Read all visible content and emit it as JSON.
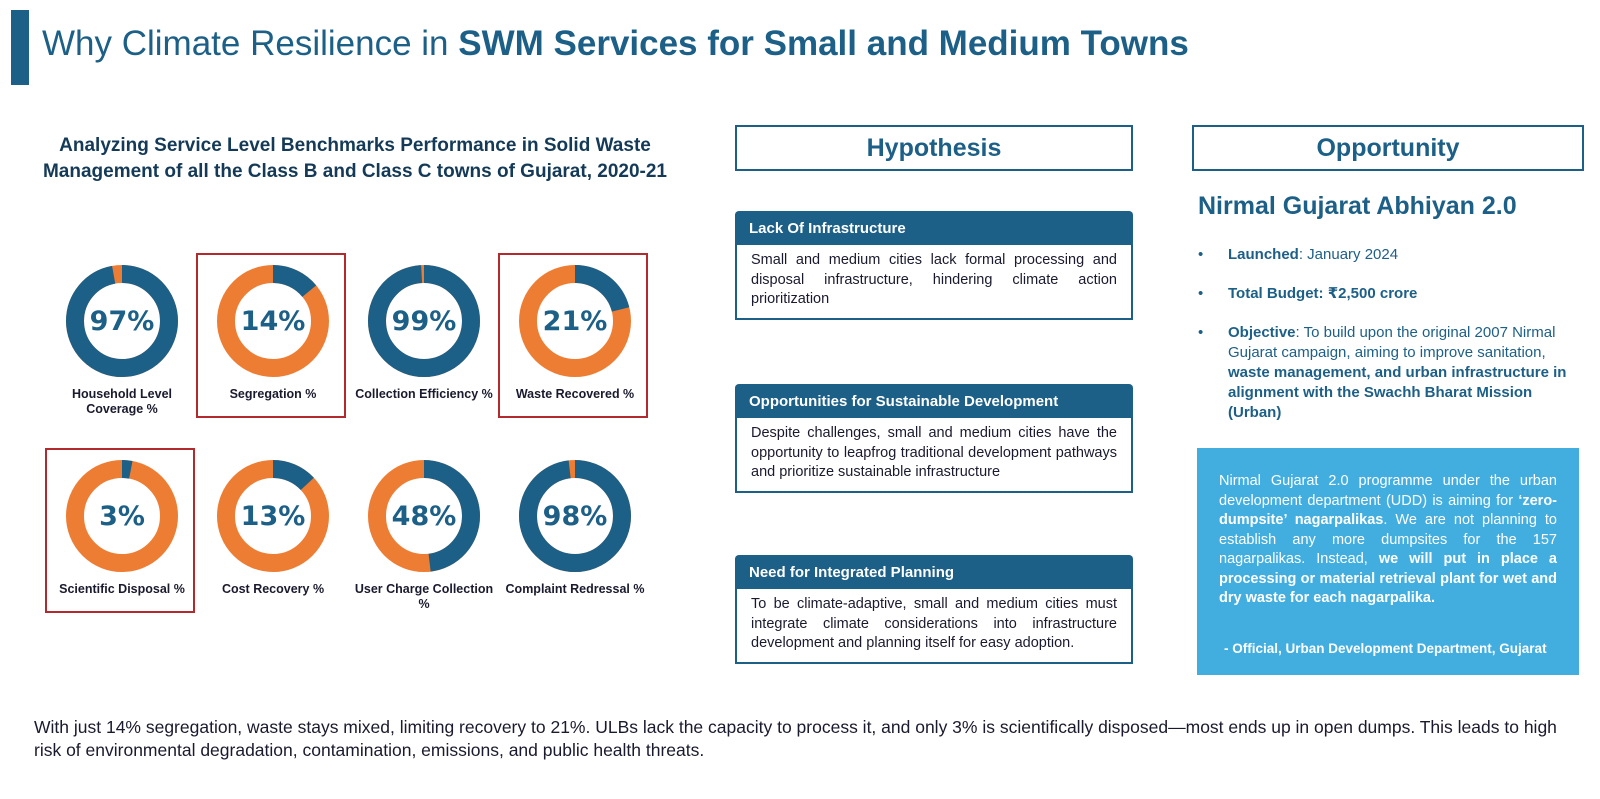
{
  "header": {
    "title_regular": "Why Climate Resilience in ",
    "title_bold": "SWM Services for Small and Medium Towns"
  },
  "chart_heading": "Analyzing Service Level Benchmarks Performance in Solid Waste Management of all the Class B and Class C towns of Gujarat, 2020-21",
  "colors": {
    "primary": "#1c5f87",
    "accent": "#ee7d34",
    "highlight_border": "#b22a2e",
    "quote_bg": "#42aee0"
  },
  "chart_data": {
    "type": "donut",
    "title": "Analyzing Service Level Benchmarks Performance in Solid Waste Management of all the Class B and Class C towns of Gujarat, 2020-21",
    "unit": "%",
    "items": [
      {
        "label": "Household Level Coverage %",
        "value": 97,
        "display": "97%",
        "highlighted": false
      },
      {
        "label": "Segregation %",
        "value": 14,
        "display": "14%",
        "highlighted": true
      },
      {
        "label": "Collection Efficiency %",
        "value": 99,
        "display": "99%",
        "highlighted": false
      },
      {
        "label": "Waste Recovered %",
        "value": 21,
        "display": "21%",
        "highlighted": true
      },
      {
        "label": "Scientific Disposal %",
        "value": 3,
        "display": "3%",
        "highlighted": true
      },
      {
        "label": "Cost Recovery %",
        "value": 13,
        "display": "13%",
        "highlighted": false
      },
      {
        "label": "User Charge Collection %",
        "value": 48,
        "display": "48%",
        "highlighted": false
      },
      {
        "label": "Complaint Redressal %",
        "value": 98,
        "display": "98%",
        "highlighted": false
      }
    ]
  },
  "hypothesis": {
    "heading": "Hypothesis",
    "cards": [
      {
        "title": "Lack Of Infrastructure",
        "body": "Small and medium cities lack formal processing and disposal infrastructure, hindering climate action prioritization"
      },
      {
        "title": "Opportunities for Sustainable Development",
        "body": "Despite challenges, small and medium cities have the opportunity to leapfrog traditional development pathways and prioritize sustainable infrastructure"
      },
      {
        "title": "Need for Integrated Planning",
        "body": "To be climate-adaptive, small and medium cities must integrate climate considerations into infrastructure development and planning itself for easy adoption."
      }
    ]
  },
  "opportunity": {
    "heading": "Opportunity",
    "program_title": "Nirmal Gujarat Abhiyan 2.0",
    "launched_label": "Launched",
    "launched_value": ": January 2024",
    "budget_label": "Total Budget",
    "budget_value": ": ₹2,500 crore",
    "objective_label": "Objective",
    "objective_text": ": To build upon the original 2007 Nirmal Gujarat campaign, aiming to improve sanitation, ",
    "objective_bold": "waste management, and urban infrastructure in alignment with the Swachh Bharat Mission (Urban)",
    "quote_part1": "Nirmal Gujarat 2.0 programme under the urban development department (UDD) is aiming for ",
    "quote_bold1": "‘zero-dumpsite’ nagarpalikas",
    "quote_part2": ". We are not planning to establish any more dumpsites for the 157 nagarpalikas. Instead, ",
    "quote_bold2": "we will put in place a processing or material retrieval plant for wet and dry waste for each nagarpalika.",
    "quote_attribution": "- Official, Urban Development Department, Gujarat"
  },
  "footer": {
    "text": "With just 14% segregation, waste stays mixed, limiting recovery to 21%. ULBs lack the capacity to process it, and only 3% is scientifically disposed—most ends up in open dumps. This leads to high risk of environmental degradation, contamination, emissions, and public health threats."
  }
}
